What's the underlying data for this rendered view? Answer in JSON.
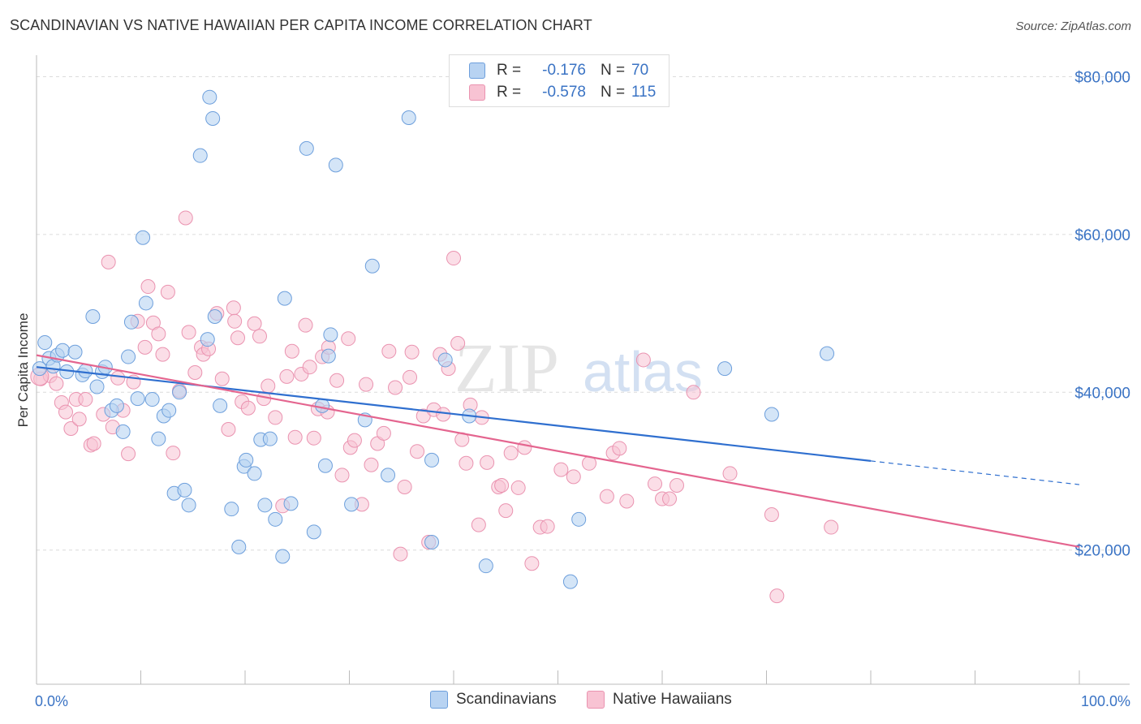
{
  "title": "SCANDINAVIAN VS NATIVE HAWAIIAN PER CAPITA INCOME CORRELATION CHART",
  "source": "Source: ZipAtlas.com",
  "watermark": {
    "zip": "ZIP",
    "atlas": "atlas"
  },
  "legend_top": [
    {
      "r_label": "R =",
      "r_value": "-0.176",
      "n_label": "N =",
      "n_value": "70"
    },
    {
      "r_label": "R =",
      "r_value": "-0.578",
      "n_label": "N =",
      "n_value": "115"
    }
  ],
  "colors": {
    "blue_fill": "#b8d3f2",
    "blue_stroke": "#6d9fdc",
    "blue_line": "#2f6fcf",
    "pink_fill": "#f8c3d3",
    "pink_stroke": "#ea93b0",
    "pink_line": "#e4658f",
    "axis_label": "#3a73c4",
    "grid": "#dcdcdc"
  },
  "chart_data": {
    "type": "scatter",
    "title": "SCANDINAVIAN VS NATIVE HAWAIIAN PER CAPITA INCOME CORRELATION CHART",
    "xlabel": "",
    "ylabel": "Per Capita Income",
    "xlim": [
      0,
      100
    ],
    "ylim": [
      3000,
      82000
    ],
    "x_tick_labels": [
      "0.0%",
      "100.0%"
    ],
    "y_ticks": [
      20000,
      40000,
      60000,
      80000
    ],
    "y_tick_labels": [
      "$20,000",
      "$40,000",
      "$60,000",
      "$80,000"
    ],
    "grid": "horizontal dashed",
    "legend_position": "bottom-center",
    "series": [
      {
        "name": "Scandinavians",
        "r": -0.176,
        "n": 70,
        "trend": {
          "x0": 0,
          "y0": 43200,
          "x1": 80,
          "y1": 31300,
          "dashed_to_x": 100,
          "dashed_to_y": 28300
        },
        "points": [
          [
            0.8,
            46300
          ],
          [
            1.2,
            44300
          ],
          [
            1.6,
            43300
          ],
          [
            2.0,
            44700
          ],
          [
            2.5,
            45300
          ],
          [
            2.9,
            42600
          ],
          [
            3.7,
            45100
          ],
          [
            4.4,
            42200
          ],
          [
            4.7,
            42700
          ],
          [
            5.4,
            49600
          ],
          [
            5.8,
            40700
          ],
          [
            6.3,
            42600
          ],
          [
            6.6,
            43200
          ],
          [
            7.2,
            37700
          ],
          [
            7.7,
            38300
          ],
          [
            8.3,
            35000
          ],
          [
            8.8,
            44500
          ],
          [
            9.1,
            48900
          ],
          [
            9.7,
            39200
          ],
          [
            10.2,
            59600
          ],
          [
            10.5,
            51300
          ],
          [
            11.1,
            39100
          ],
          [
            11.7,
            34100
          ],
          [
            12.2,
            37000
          ],
          [
            12.7,
            37700
          ],
          [
            13.2,
            27200
          ],
          [
            13.7,
            40000
          ],
          [
            14.2,
            27600
          ],
          [
            14.6,
            25700
          ],
          [
            15.7,
            70000
          ],
          [
            16.4,
            46700
          ],
          [
            16.6,
            77400
          ],
          [
            16.9,
            74700
          ],
          [
            17.1,
            49600
          ],
          [
            17.6,
            38300
          ],
          [
            18.7,
            25200
          ],
          [
            19.4,
            20400
          ],
          [
            19.9,
            30600
          ],
          [
            20.1,
            31400
          ],
          [
            20.9,
            29700
          ],
          [
            21.5,
            34000
          ],
          [
            21.9,
            25700
          ],
          [
            22.4,
            34100
          ],
          [
            22.9,
            23900
          ],
          [
            23.6,
            19200
          ],
          [
            23.8,
            51900
          ],
          [
            24.4,
            25900
          ],
          [
            25.9,
            70900
          ],
          [
            26.6,
            22300
          ],
          [
            27.4,
            38300
          ],
          [
            27.7,
            30700
          ],
          [
            28.0,
            44600
          ],
          [
            28.2,
            47300
          ],
          [
            28.7,
            68800
          ],
          [
            30.2,
            25800
          ],
          [
            31.5,
            36500
          ],
          [
            32.2,
            56000
          ],
          [
            33.7,
            29500
          ],
          [
            35.7,
            74800
          ],
          [
            37.9,
            31400
          ],
          [
            37.9,
            21000
          ],
          [
            39.2,
            44100
          ],
          [
            41.5,
            37000
          ],
          [
            43.1,
            18000
          ],
          [
            51.2,
            16000
          ],
          [
            52.0,
            23900
          ],
          [
            66.0,
            43000
          ],
          [
            70.5,
            37200
          ],
          [
            75.8,
            44900
          ],
          [
            0.3,
            43000
          ]
        ]
      },
      {
        "name": "Native Hawaiians",
        "r": -0.578,
        "n": 115,
        "trend": {
          "x0": 0,
          "y0": 44700,
          "x1": 100,
          "y1": 20400
        },
        "points": [
          [
            0.4,
            41700
          ],
          [
            1.3,
            42100
          ],
          [
            1.9,
            41100
          ],
          [
            2.4,
            38700
          ],
          [
            2.8,
            37500
          ],
          [
            3.3,
            35400
          ],
          [
            3.8,
            39100
          ],
          [
            4.1,
            36600
          ],
          [
            4.7,
            39100
          ],
          [
            5.2,
            33300
          ],
          [
            5.5,
            33500
          ],
          [
            6.4,
            37200
          ],
          [
            6.9,
            56500
          ],
          [
            7.3,
            35600
          ],
          [
            7.8,
            41800
          ],
          [
            8.3,
            37700
          ],
          [
            8.8,
            32200
          ],
          [
            9.3,
            41300
          ],
          [
            9.7,
            49000
          ],
          [
            10.4,
            45700
          ],
          [
            10.7,
            53400
          ],
          [
            11.2,
            48800
          ],
          [
            11.7,
            47400
          ],
          [
            12.1,
            44800
          ],
          [
            12.6,
            52700
          ],
          [
            13.1,
            32300
          ],
          [
            13.7,
            40200
          ],
          [
            14.3,
            62100
          ],
          [
            14.6,
            47600
          ],
          [
            15.2,
            42500
          ],
          [
            15.8,
            45700
          ],
          [
            16.0,
            44800
          ],
          [
            16.5,
            45500
          ],
          [
            17.3,
            50000
          ],
          [
            17.8,
            41700
          ],
          [
            18.4,
            35300
          ],
          [
            18.9,
            50700
          ],
          [
            19.0,
            49000
          ],
          [
            19.3,
            46900
          ],
          [
            19.7,
            38800
          ],
          [
            20.3,
            38000
          ],
          [
            20.9,
            48700
          ],
          [
            21.4,
            47100
          ],
          [
            21.8,
            39200
          ],
          [
            22.2,
            40800
          ],
          [
            22.9,
            36800
          ],
          [
            23.6,
            25600
          ],
          [
            24.0,
            42000
          ],
          [
            24.5,
            45200
          ],
          [
            24.8,
            34300
          ],
          [
            25.4,
            42300
          ],
          [
            25.8,
            48500
          ],
          [
            26.2,
            43200
          ],
          [
            26.6,
            34200
          ],
          [
            27.0,
            37900
          ],
          [
            27.4,
            44500
          ],
          [
            27.9,
            37500
          ],
          [
            28.0,
            45700
          ],
          [
            28.8,
            41500
          ],
          [
            29.3,
            29500
          ],
          [
            29.9,
            46800
          ],
          [
            30.1,
            33000
          ],
          [
            30.5,
            33900
          ],
          [
            31.2,
            25800
          ],
          [
            31.6,
            41000
          ],
          [
            32.1,
            30800
          ],
          [
            32.7,
            33500
          ],
          [
            33.3,
            34800
          ],
          [
            33.8,
            45200
          ],
          [
            34.4,
            40600
          ],
          [
            34.9,
            19500
          ],
          [
            35.3,
            28000
          ],
          [
            35.8,
            41900
          ],
          [
            36.0,
            45100
          ],
          [
            36.5,
            32500
          ],
          [
            37.1,
            37000
          ],
          [
            37.6,
            21000
          ],
          [
            38.1,
            37800
          ],
          [
            38.7,
            44800
          ],
          [
            39.0,
            37200
          ],
          [
            39.5,
            43000
          ],
          [
            40.0,
            57000
          ],
          [
            40.4,
            46200
          ],
          [
            40.8,
            34000
          ],
          [
            41.2,
            31000
          ],
          [
            41.6,
            38400
          ],
          [
            42.4,
            23200
          ],
          [
            42.7,
            36800
          ],
          [
            43.2,
            31100
          ],
          [
            44.3,
            28000
          ],
          [
            44.6,
            28200
          ],
          [
            45.0,
            25000
          ],
          [
            45.5,
            32300
          ],
          [
            46.2,
            27900
          ],
          [
            46.8,
            33000
          ],
          [
            47.5,
            18300
          ],
          [
            48.3,
            22900
          ],
          [
            49.0,
            23000
          ],
          [
            50.3,
            30200
          ],
          [
            51.5,
            29300
          ],
          [
            53.0,
            31000
          ],
          [
            54.7,
            26800
          ],
          [
            55.3,
            32300
          ],
          [
            55.9,
            32900
          ],
          [
            56.6,
            26200
          ],
          [
            58.2,
            44100
          ],
          [
            59.3,
            28400
          ],
          [
            60.0,
            26500
          ],
          [
            60.7,
            26500
          ],
          [
            61.4,
            28200
          ],
          [
            63.0,
            40000
          ],
          [
            66.5,
            29700
          ],
          [
            70.5,
            24500
          ],
          [
            71.0,
            14200
          ],
          [
            76.2,
            22900
          ]
        ]
      }
    ]
  }
}
